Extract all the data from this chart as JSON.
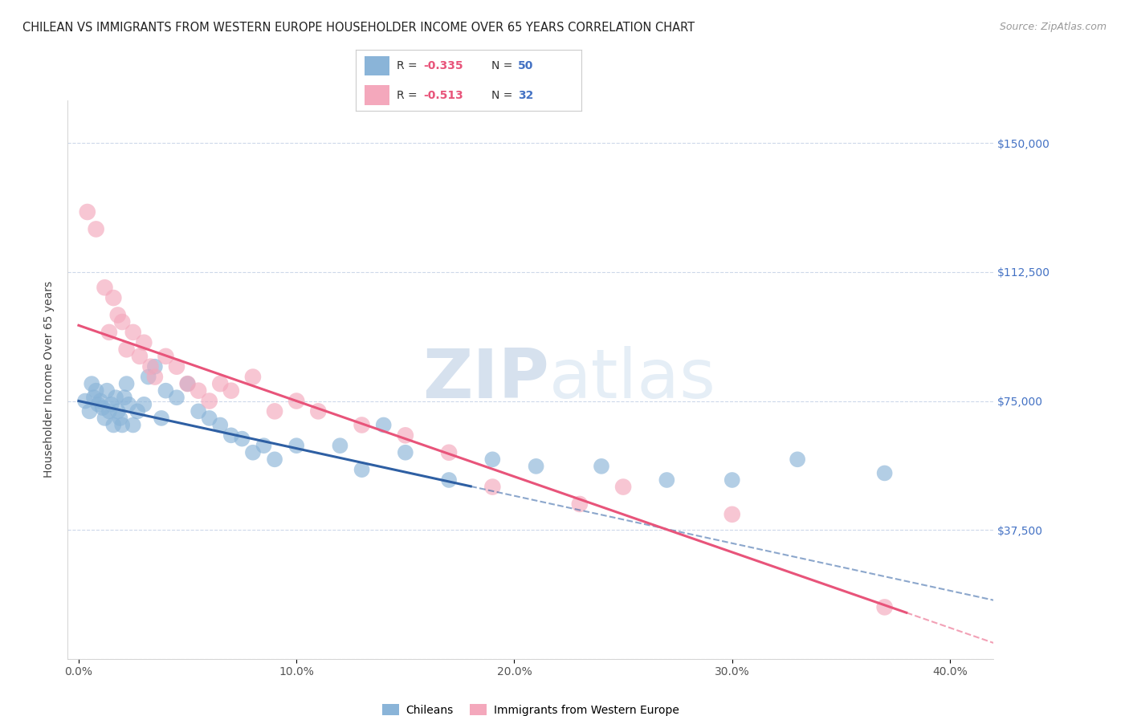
{
  "title": "CHILEAN VS IMMIGRANTS FROM WESTERN EUROPE HOUSEHOLDER INCOME OVER 65 YEARS CORRELATION CHART",
  "source": "Source: ZipAtlas.com",
  "ylabel": "Householder Income Over 65 years",
  "xlabel_ticks": [
    "0.0%",
    "10.0%",
    "20.0%",
    "30.0%",
    "40.0%"
  ],
  "xlabel_vals": [
    0,
    10,
    20,
    30,
    40
  ],
  "ylim": [
    0,
    162500
  ],
  "xlim": [
    -0.5,
    42
  ],
  "yticks": [
    0,
    37500,
    75000,
    112500,
    150000
  ],
  "ytick_labels": [
    "",
    "$37,500",
    "$75,000",
    "$112,500",
    "$150,000"
  ],
  "ytick_color": "#4472c4",
  "blue_color": "#8ab4d8",
  "pink_color": "#f4a8bc",
  "line_blue": "#2e5fa3",
  "line_pink": "#e8547a",
  "watermark_zip": "ZIP",
  "watermark_atlas": "atlas",
  "watermark_color": "#d0dff0",
  "grid_color": "#c8d4e8",
  "bg_color": "#ffffff",
  "title_fontsize": 10.5,
  "tick_fontsize": 10,
  "chileans_x": [
    0.3,
    0.5,
    0.6,
    0.7,
    0.8,
    0.9,
    1.0,
    1.1,
    1.2,
    1.3,
    1.4,
    1.5,
    1.6,
    1.7,
    1.8,
    1.9,
    2.0,
    2.1,
    2.2,
    2.3,
    2.5,
    2.7,
    3.0,
    3.2,
    3.5,
    3.8,
    4.0,
    4.5,
    5.0,
    5.5,
    6.0,
    6.5,
    7.0,
    7.5,
    8.0,
    8.5,
    9.0,
    10.0,
    12.0,
    13.0,
    14.0,
    15.0,
    17.0,
    19.0,
    21.0,
    24.0,
    27.0,
    30.0,
    33.0,
    37.0
  ],
  "chileans_y": [
    75000,
    72000,
    80000,
    76000,
    78000,
    74000,
    75000,
    73000,
    70000,
    78000,
    72000,
    74000,
    68000,
    76000,
    72000,
    70000,
    68000,
    76000,
    80000,
    74000,
    68000,
    72000,
    74000,
    82000,
    85000,
    70000,
    78000,
    76000,
    80000,
    72000,
    70000,
    68000,
    65000,
    64000,
    60000,
    62000,
    58000,
    62000,
    62000,
    55000,
    68000,
    60000,
    52000,
    58000,
    56000,
    56000,
    52000,
    52000,
    58000,
    54000
  ],
  "immigrants_x": [
    0.4,
    0.8,
    1.2,
    1.4,
    1.6,
    1.8,
    2.0,
    2.2,
    2.5,
    2.8,
    3.0,
    3.3,
    3.5,
    4.0,
    4.5,
    5.0,
    5.5,
    6.0,
    6.5,
    7.0,
    8.0,
    9.0,
    10.0,
    11.0,
    13.0,
    15.0,
    17.0,
    19.0,
    23.0,
    25.0,
    30.0,
    37.0
  ],
  "immigrants_y": [
    130000,
    125000,
    108000,
    95000,
    105000,
    100000,
    98000,
    90000,
    95000,
    88000,
    92000,
    85000,
    82000,
    88000,
    85000,
    80000,
    78000,
    75000,
    80000,
    78000,
    82000,
    72000,
    75000,
    72000,
    68000,
    65000,
    60000,
    50000,
    45000,
    50000,
    42000,
    15000
  ],
  "blue_line_intercept": 75000,
  "blue_line_slope": -1380,
  "pink_line_intercept": 97000,
  "pink_line_slope": -2200,
  "blue_solid_end": 18,
  "pink_solid_end": 38
}
